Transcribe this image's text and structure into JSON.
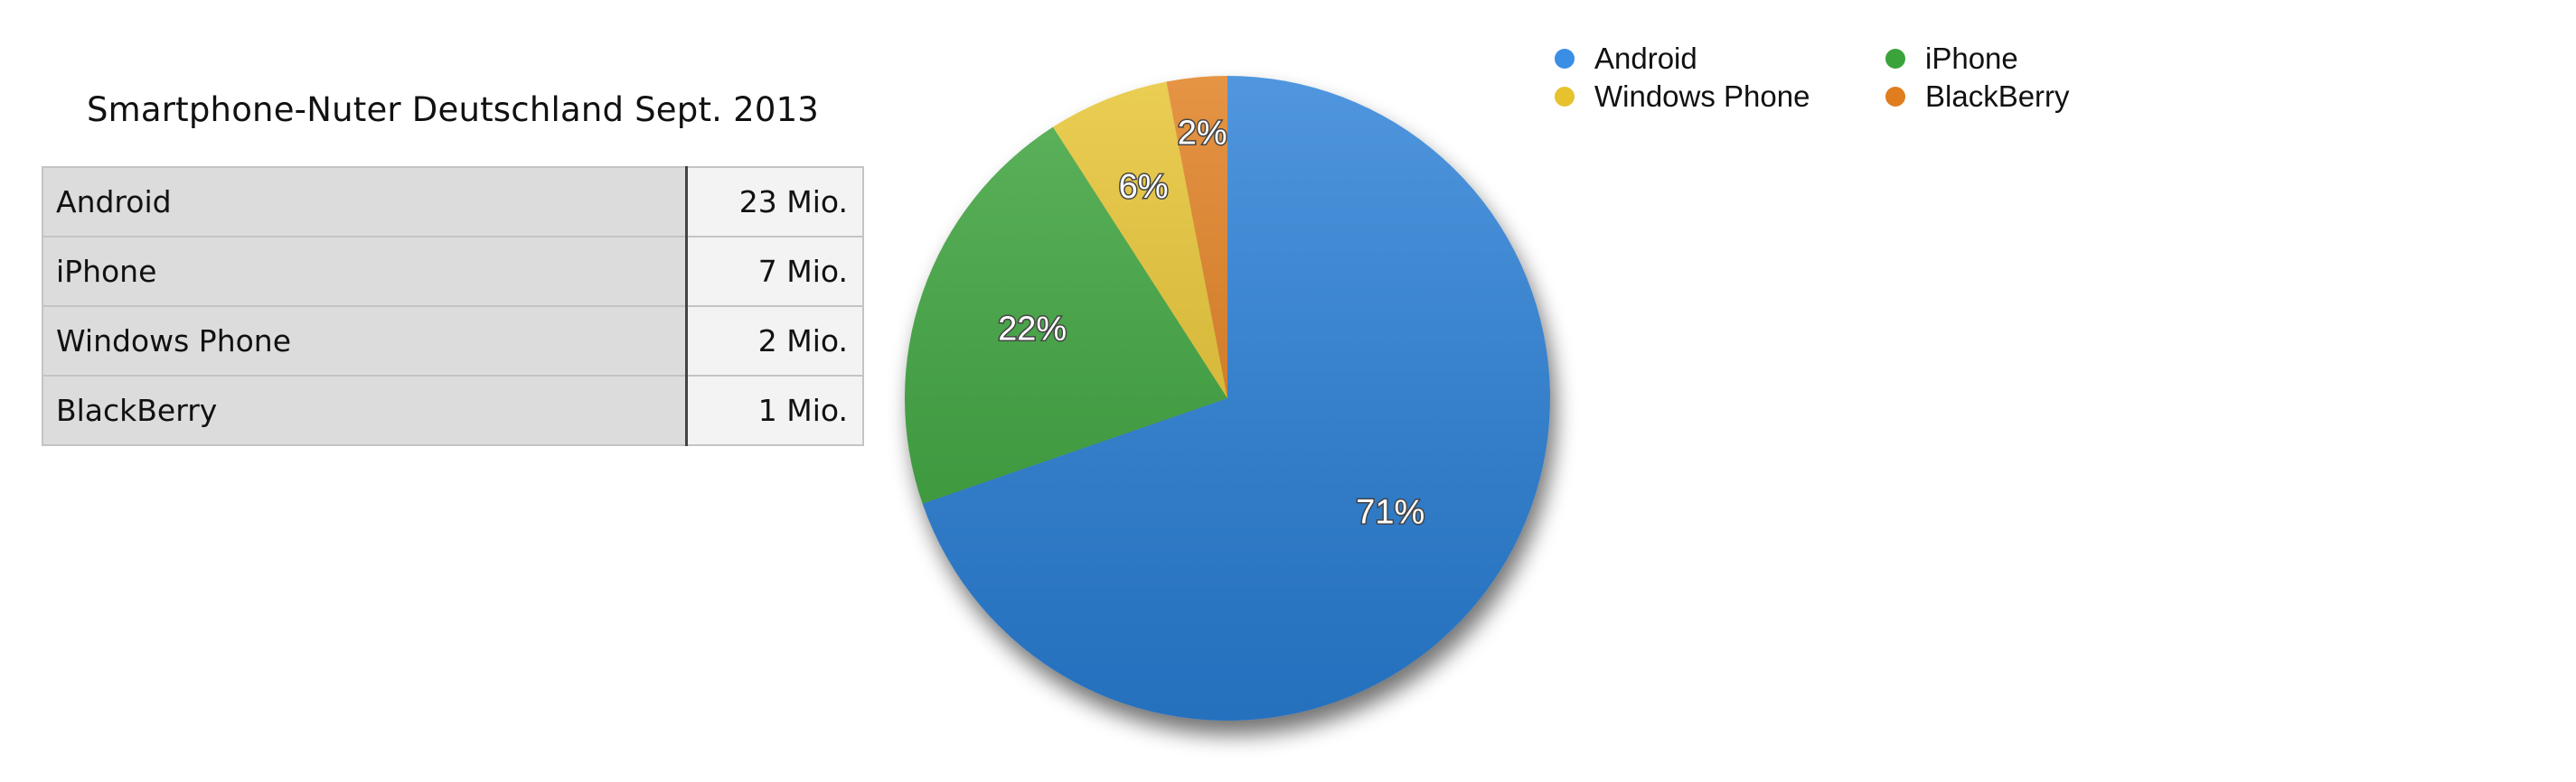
{
  "table": {
    "title": "Smartphone-Nuter Deutschland Sept. 2013",
    "rows": [
      {
        "name": "Android",
        "value": "23 Mio."
      },
      {
        "name": "iPhone",
        "value": "7 Mio."
      },
      {
        "name": "Windows Phone",
        "value": "2 Mio."
      },
      {
        "name": "BlackBerry",
        "value": "1 Mio."
      }
    ]
  },
  "chart_data": {
    "type": "pie",
    "categories": [
      "Android",
      "iPhone",
      "Windows Phone",
      "BlackBerry"
    ],
    "values": [
      23,
      7,
      2,
      1
    ],
    "value_unit": "Mio.",
    "labels": [
      "71%",
      "22%",
      "6%",
      "2%"
    ],
    "colors": [
      "#2b80d8",
      "#3aa43a",
      "#e6c32e",
      "#e07d1f"
    ],
    "legend": {
      "placement": "top-right",
      "entries": [
        {
          "name": "Android",
          "color": "#3a8ee6"
        },
        {
          "name": "iPhone",
          "color": "#3aa43a"
        },
        {
          "name": "Windows Phone",
          "color": "#e6c32e"
        },
        {
          "name": "BlackBerry",
          "color": "#e07d1f"
        }
      ]
    },
    "start": "12 o'clock",
    "direction": "clockwise",
    "grid": false,
    "title": ""
  }
}
